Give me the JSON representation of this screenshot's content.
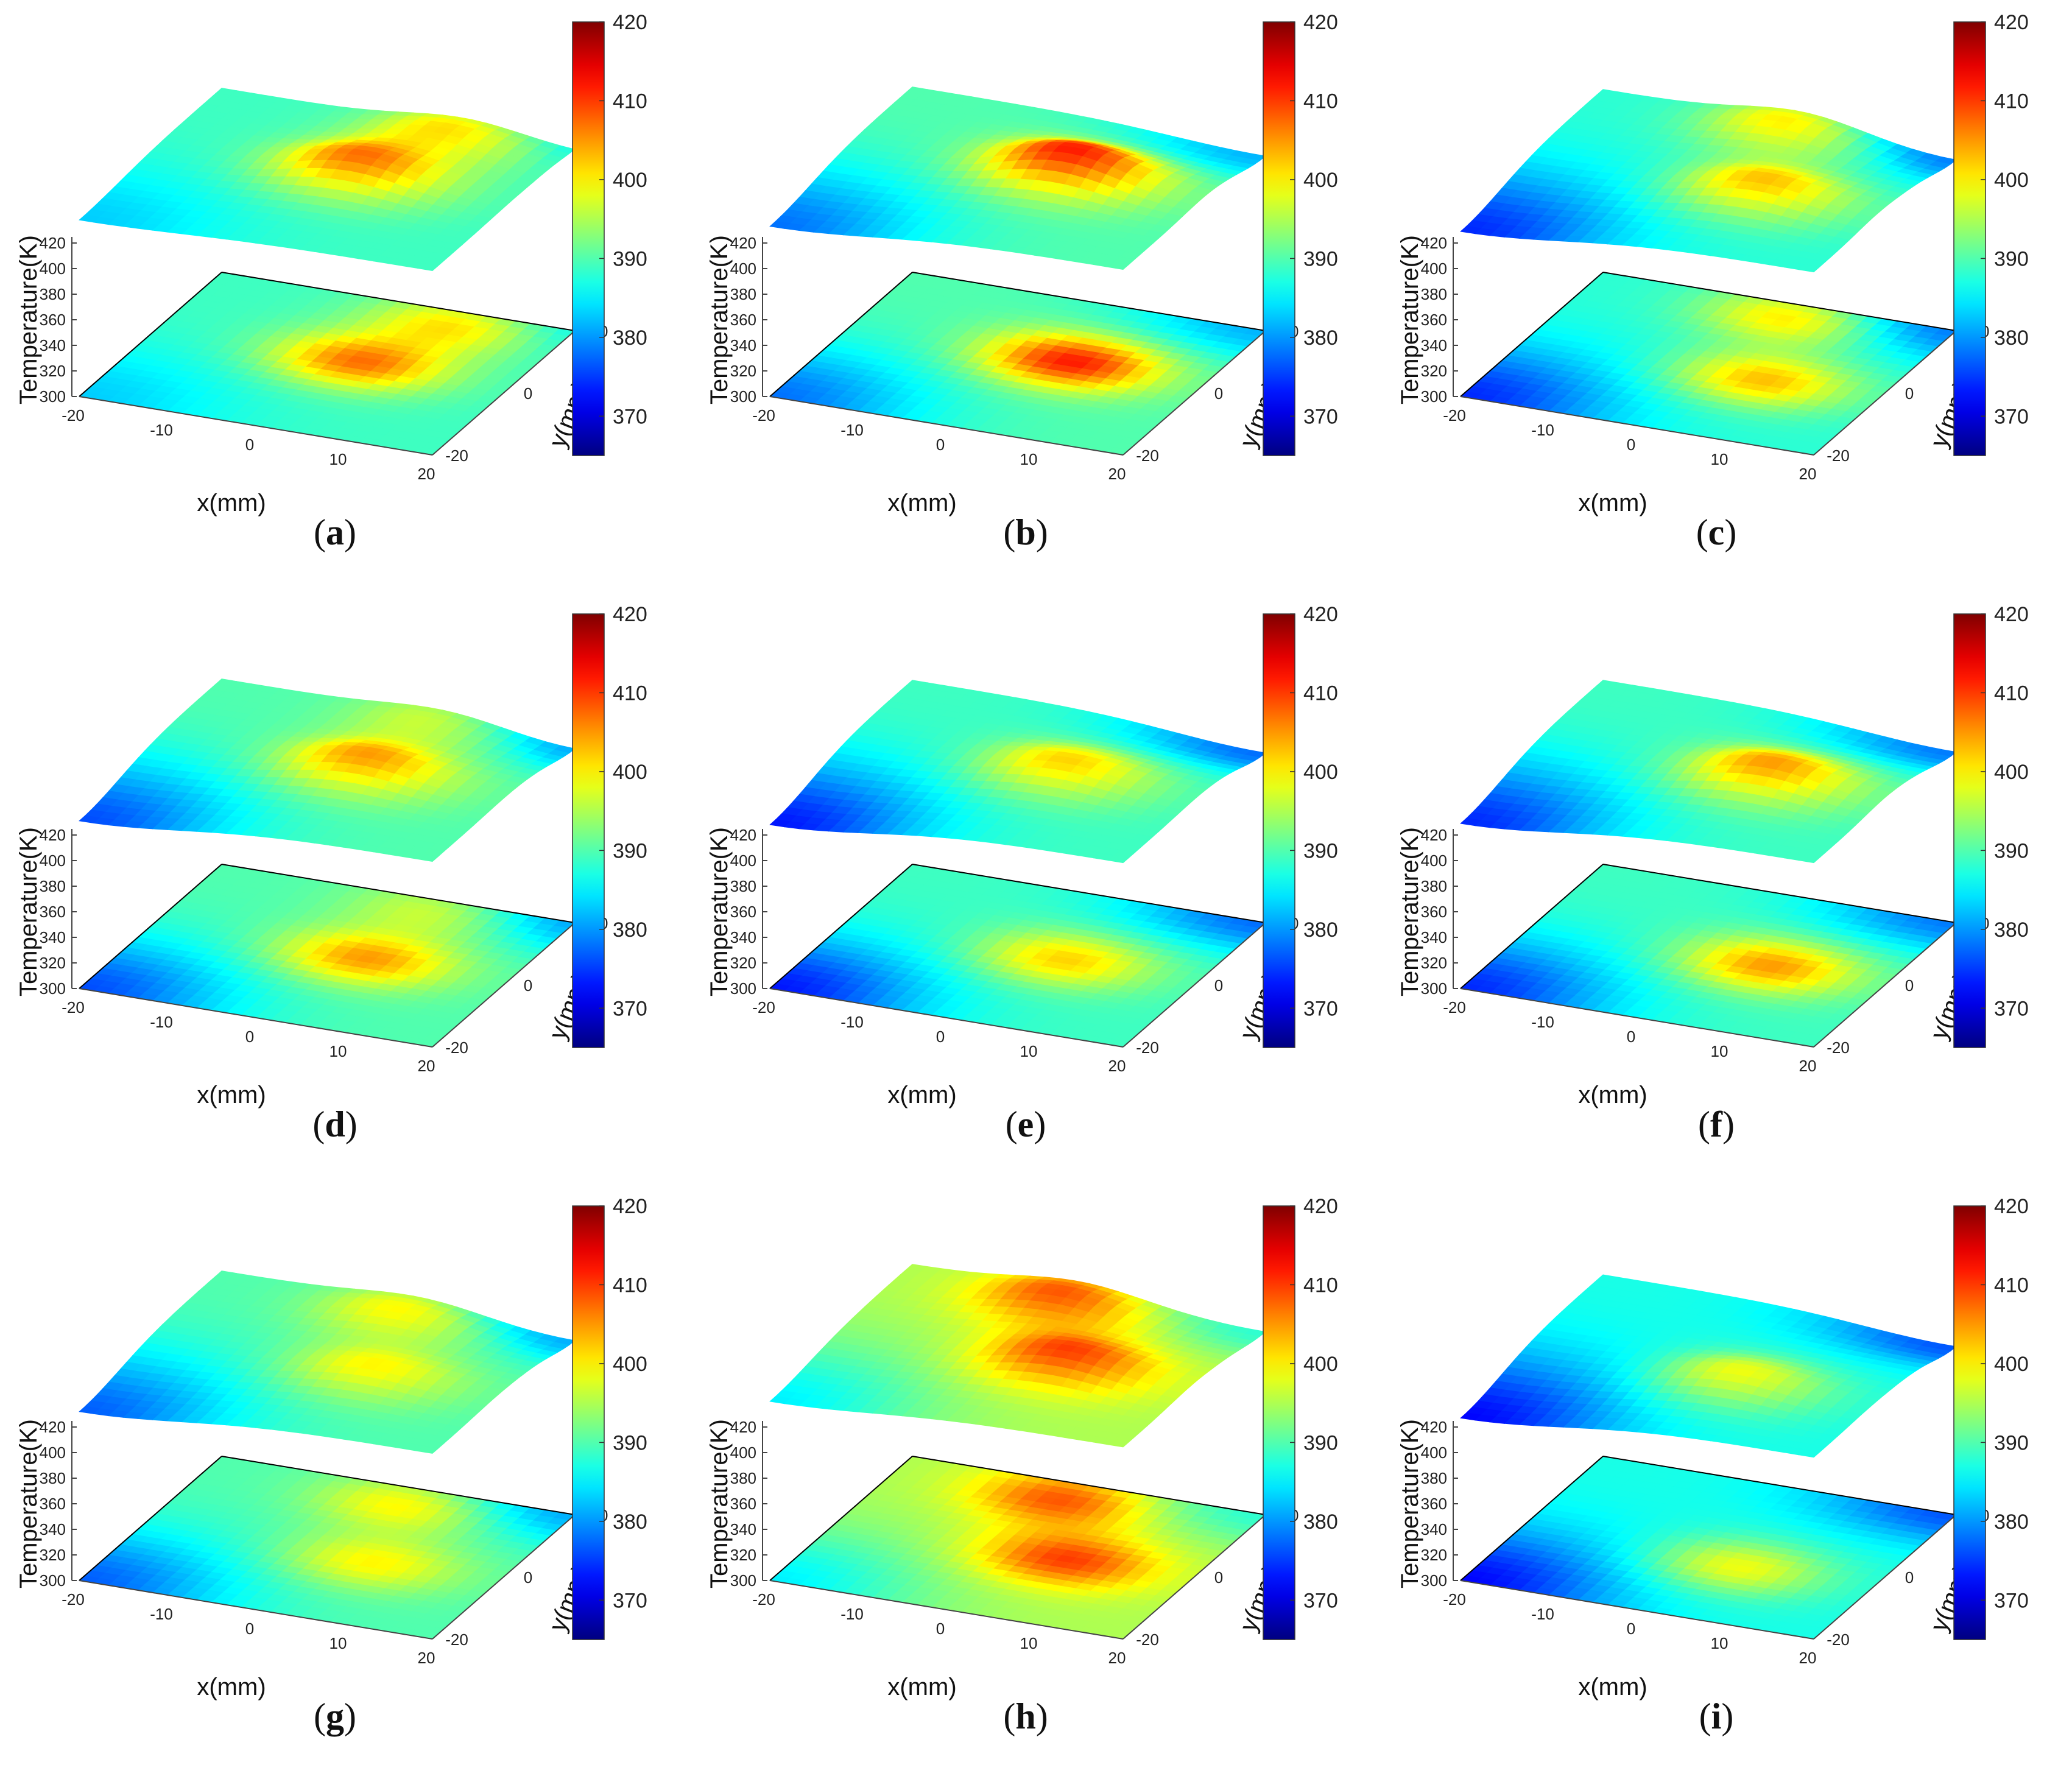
{
  "figure": {
    "colorbar": {
      "ticks": [
        370,
        380,
        390,
        400,
        410,
        420
      ],
      "range": [
        365,
        420
      ],
      "colormap": "jet"
    },
    "axes": {
      "xlabel": "x(mm)",
      "ylabel": "y(mm)",
      "zlabel": "Temperature(K)",
      "x_ticks": [
        "-20",
        "-10",
        "0",
        "10",
        "20"
      ],
      "y_ticks": [
        "-20",
        "0",
        "20"
      ],
      "z_ticks": [
        "300",
        "320",
        "340",
        "360",
        "380",
        "400",
        "420"
      ]
    }
  },
  "chart_data": [
    {
      "type": "surface",
      "label": "a",
      "peaks": [
        {
          "x": 3,
          "y": 2,
          "T": 407
        },
        {
          "x": 8,
          "y": 16,
          "T": 402
        }
      ],
      "base_T": 389,
      "cold_corner": 383
    },
    {
      "type": "surface",
      "label": "b",
      "peaks": [
        {
          "x": 5,
          "y": 3,
          "T": 412
        }
      ],
      "base_T": 390,
      "cold_corner": 378
    },
    {
      "type": "surface",
      "label": "c",
      "peaks": [
        {
          "x": 7,
          "y": -2,
          "T": 403
        },
        {
          "x": 3,
          "y": 16,
          "T": 402
        }
      ],
      "base_T": 388,
      "cold_corner": 374
    },
    {
      "type": "surface",
      "label": "d",
      "peaks": [
        {
          "x": 4,
          "y": 1,
          "T": 405
        },
        {
          "x": 6,
          "y": 17,
          "T": 399
        }
      ],
      "base_T": 390,
      "cold_corner": 376
    },
    {
      "type": "surface",
      "label": "e",
      "peaks": [
        {
          "x": 5,
          "y": 1,
          "T": 402
        }
      ],
      "base_T": 389,
      "cold_corner": 373
    },
    {
      "type": "surface",
      "label": "f",
      "peaks": [
        {
          "x": 7,
          "y": 0,
          "T": 405
        }
      ],
      "base_T": 389,
      "cold_corner": 374
    },
    {
      "type": "surface",
      "label": "g",
      "peaks": [
        {
          "x": 3,
          "y": 15,
          "T": 401
        },
        {
          "x": 6,
          "y": -2,
          "T": 400
        }
      ],
      "base_T": 390,
      "cold_corner": 377
    },
    {
      "type": "surface",
      "label": "h",
      "peaks": [
        {
          "x": -1,
          "y": 15,
          "T": 409
        },
        {
          "x": 6,
          "y": -1,
          "T": 410
        }
      ],
      "base_T": 395,
      "cold_corner": 385
    },
    {
      "type": "surface",
      "label": "i",
      "peaks": [
        {
          "x": 5,
          "y": -4,
          "T": 399
        }
      ],
      "base_T": 387,
      "cold_corner": 372
    }
  ]
}
